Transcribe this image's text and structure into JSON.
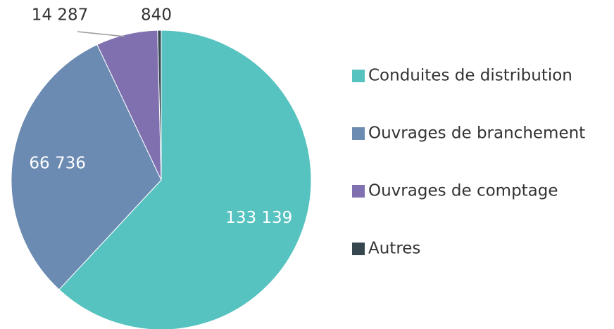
{
  "chart_data": {
    "type": "pie",
    "categories": [
      "Conduites de distribution",
      "Ouvrages de branchement",
      "Ouvrages de comptage",
      "Autres"
    ],
    "values": [
      133139,
      66736,
      14287,
      840
    ],
    "value_labels": [
      "133 139",
      "66 736",
      "14 287",
      "840"
    ],
    "colors": [
      "#56c3c0",
      "#6b8bb2",
      "#8170b0",
      "#37474f"
    ],
    "legend": "right"
  }
}
